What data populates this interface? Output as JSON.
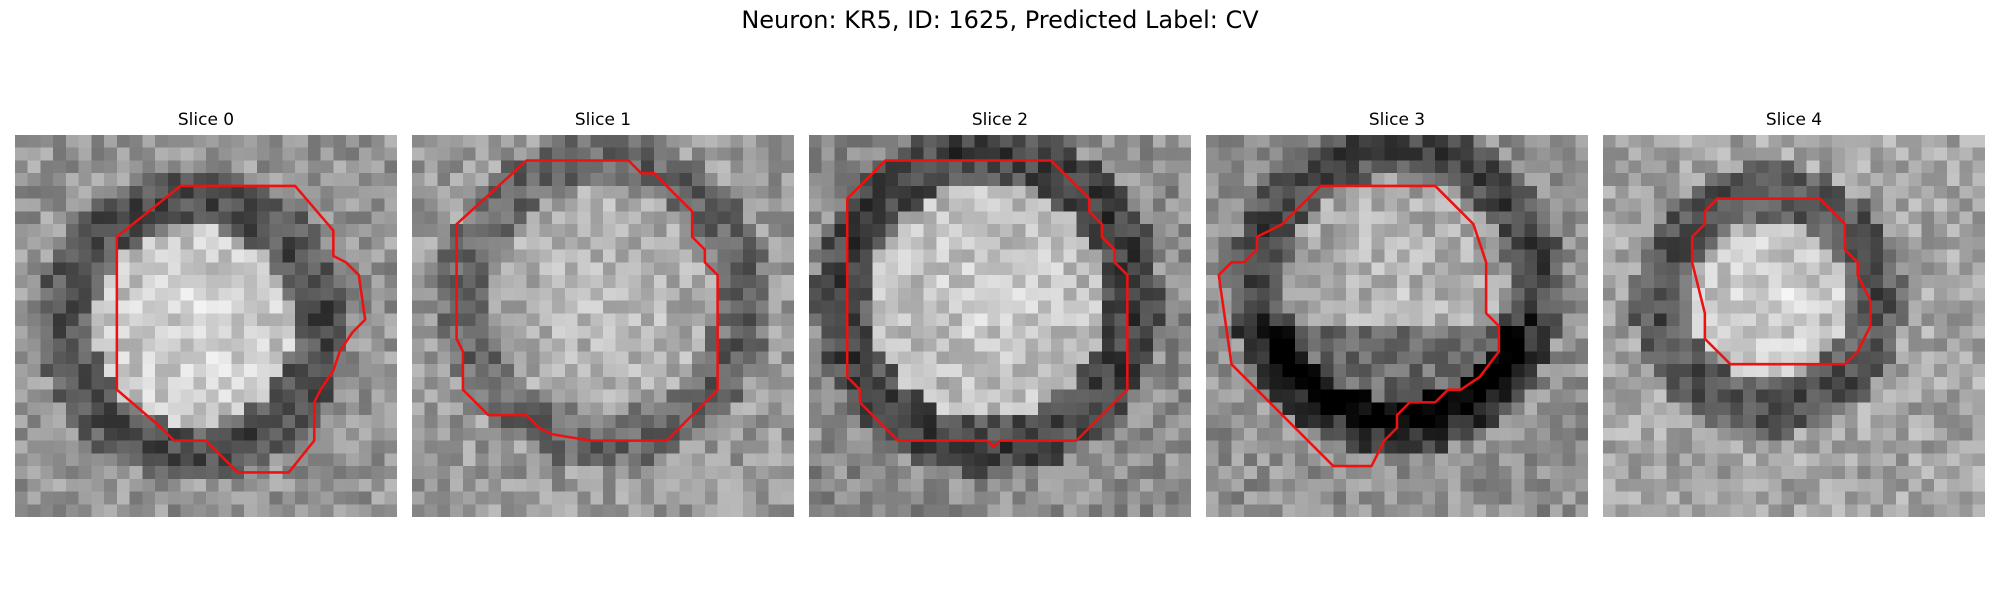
{
  "figure": {
    "title": "Neuron: KR5, ID: 1625, Predicted Label: CV"
  },
  "contour_color": "#ee1111",
  "colormap": "gray",
  "panels": [
    {
      "title": "Slice 0",
      "kind": "ring",
      "seed": 11,
      "center": [
        14,
        15
      ],
      "radius": 10.0,
      "ring_dark": 70,
      "inner_bright": 215,
      "bg": 150,
      "contour": [
        [
          13,
          4
        ],
        [
          22,
          4
        ],
        [
          25,
          7.5
        ],
        [
          25,
          9.5
        ],
        [
          26,
          10
        ],
        [
          27,
          11
        ],
        [
          27.5,
          14.5
        ],
        [
          26.5,
          15.5
        ],
        [
          25.5,
          17
        ],
        [
          25,
          18.5
        ],
        [
          24,
          20
        ],
        [
          23.5,
          21
        ],
        [
          23.5,
          24
        ],
        [
          21.5,
          26.5
        ],
        [
          17.5,
          26.5
        ],
        [
          15,
          24
        ],
        [
          12.5,
          24
        ],
        [
          11.5,
          23
        ],
        [
          8,
          20
        ],
        [
          8,
          8
        ]
      ]
    },
    {
      "title": "Slice 1",
      "kind": "blob",
      "seed": 23,
      "center": [
        15,
        13
      ],
      "radius": 11.0,
      "ring_dark": 95,
      "inner_bright": 190,
      "bg": 155,
      "contour": [
        [
          9,
          2
        ],
        [
          17,
          2
        ],
        [
          18,
          3
        ],
        [
          19,
          3
        ],
        [
          21,
          5
        ],
        [
          22,
          6
        ],
        [
          22,
          8
        ],
        [
          23,
          9
        ],
        [
          23,
          10
        ],
        [
          24,
          11
        ],
        [
          24,
          20
        ],
        [
          20,
          24
        ],
        [
          14,
          24
        ],
        [
          11,
          23.5
        ],
        [
          10,
          23
        ],
        [
          9,
          22
        ],
        [
          6,
          22
        ],
        [
          4,
          20
        ],
        [
          4,
          17
        ],
        [
          3.5,
          16
        ],
        [
          3.5,
          7
        ],
        [
          9,
          2
        ]
      ]
    },
    {
      "title": "Slice 2",
      "kind": "ring",
      "seed": 37,
      "center": [
        14,
        13
      ],
      "radius": 11.5,
      "ring_dark": 60,
      "inner_bright": 205,
      "bg": 140,
      "contour": [
        [
          8,
          2
        ],
        [
          19,
          2
        ],
        [
          22,
          5
        ],
        [
          22,
          6
        ],
        [
          23,
          7
        ],
        [
          23,
          8
        ],
        [
          24,
          9
        ],
        [
          24,
          10
        ],
        [
          25,
          11
        ],
        [
          25,
          20
        ],
        [
          21,
          24
        ],
        [
          20,
          24
        ],
        [
          19,
          24
        ],
        [
          15,
          24
        ],
        [
          14.5,
          24.5
        ],
        [
          14,
          24
        ],
        [
          7,
          24
        ],
        [
          4,
          21
        ],
        [
          4,
          20
        ],
        [
          3,
          19
        ],
        [
          3,
          5
        ],
        [
          6,
          2
        ],
        [
          8,
          2
        ]
      ]
    },
    {
      "title": "Slice 3",
      "kind": "lower-dark",
      "seed": 53,
      "center": [
        15,
        12
      ],
      "radius": 11.0,
      "ring_dark": 65,
      "inner_bright": 185,
      "bg": 145,
      "contour": [
        [
          9,
          4
        ],
        [
          18,
          4
        ],
        [
          21,
          7
        ],
        [
          22,
          10
        ],
        [
          22,
          14
        ],
        [
          23,
          15
        ],
        [
          23,
          17
        ],
        [
          21.5,
          19
        ],
        [
          20,
          20
        ],
        [
          19,
          20
        ],
        [
          18,
          21
        ],
        [
          16,
          21
        ],
        [
          15,
          22
        ],
        [
          15,
          23
        ],
        [
          14,
          24
        ],
        [
          13,
          26
        ],
        [
          10,
          26
        ],
        [
          8,
          24
        ],
        [
          6,
          22
        ],
        [
          4,
          20
        ],
        [
          2,
          18
        ],
        [
          1,
          11
        ],
        [
          2,
          10
        ],
        [
          3,
          10
        ],
        [
          4,
          9
        ],
        [
          4,
          8
        ],
        [
          6,
          7
        ],
        [
          7,
          6
        ],
        [
          8,
          5
        ],
        [
          9,
          4
        ]
      ]
    },
    {
      "title": "Slice 4",
      "kind": "ring",
      "seed": 71,
      "center": [
        13,
        13
      ],
      "radius": 8.5,
      "ring_dark": 75,
      "inner_bright": 215,
      "bg": 165,
      "contour": [
        [
          10,
          5
        ],
        [
          17,
          5
        ],
        [
          18,
          6
        ],
        [
          19,
          7
        ],
        [
          19,
          9
        ],
        [
          20,
          10
        ],
        [
          20,
          11
        ],
        [
          21,
          13
        ],
        [
          21,
          15
        ],
        [
          20,
          17
        ],
        [
          19,
          18
        ],
        [
          16,
          18
        ],
        [
          12,
          18
        ],
        [
          10,
          18
        ],
        [
          8,
          16
        ],
        [
          8,
          14
        ],
        [
          7,
          10
        ],
        [
          7,
          8
        ],
        [
          8,
          7
        ],
        [
          8,
          6
        ],
        [
          9,
          5
        ],
        [
          10,
          5
        ]
      ]
    }
  ]
}
